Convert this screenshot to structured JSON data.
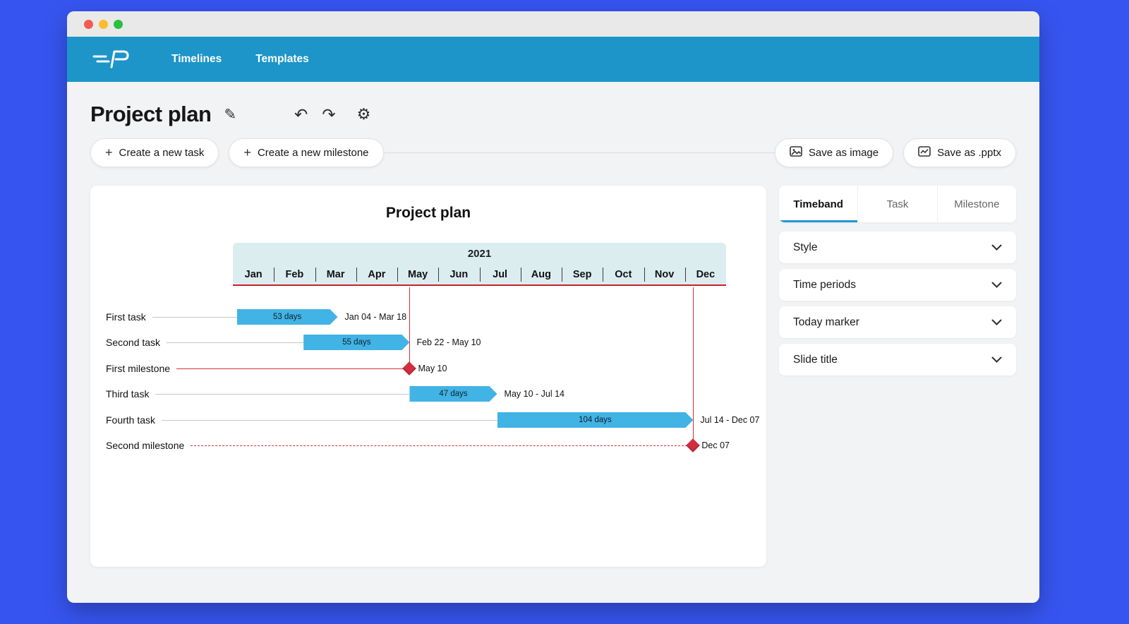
{
  "nav": {
    "items": [
      "Timelines",
      "Templates"
    ]
  },
  "icons": {
    "edit": "✎",
    "undo": "↶",
    "redo": "↷",
    "settings": "⚙",
    "plus": "+"
  },
  "page": {
    "title": "Project plan",
    "toolbar": {
      "create_task": "Create a new task",
      "create_milestone": "Create a new milestone",
      "save_image": "Save as image",
      "save_pptx": "Save as .pptx"
    }
  },
  "panel": {
    "tabs": [
      {
        "label": "Timeband",
        "active": true
      },
      {
        "label": "Task",
        "active": false
      },
      {
        "label": "Milestone",
        "active": false
      }
    ],
    "sections": [
      {
        "label": "Style"
      },
      {
        "label": "Time periods"
      },
      {
        "label": "Today marker"
      },
      {
        "label": "Slide title"
      }
    ]
  },
  "chart_data": {
    "type": "gantt-timeline",
    "title": "Project plan",
    "year": "2021",
    "months": [
      "Jan",
      "Feb",
      "Mar",
      "Apr",
      "May",
      "Jun",
      "Jul",
      "Aug",
      "Sep",
      "Oct",
      "Nov",
      "Dec"
    ],
    "rows": [
      {
        "kind": "task",
        "label": "First task",
        "duration": "53 days",
        "dates": "Jan 04 - Mar 18",
        "start_m": 0.1,
        "end_m": 2.55
      },
      {
        "kind": "task",
        "label": "Second task",
        "duration": "55 days",
        "dates": "Feb 22 - May 10",
        "start_m": 1.72,
        "end_m": 4.3
      },
      {
        "kind": "milestone",
        "label": "First milestone",
        "dates": "May 10",
        "at_m": 4.3,
        "line": "solid"
      },
      {
        "kind": "task",
        "label": "Third task",
        "duration": "47 days",
        "dates": "May 10 - Jul 14",
        "start_m": 4.3,
        "end_m": 6.43
      },
      {
        "kind": "task",
        "label": "Fourth task",
        "duration": "104 days",
        "dates": "Jul 14 - Dec 07",
        "start_m": 6.43,
        "end_m": 11.2
      },
      {
        "kind": "milestone",
        "label": "Second milestone",
        "dates": "Dec 07",
        "at_m": 11.2,
        "line": "dashed"
      }
    ],
    "colors": {
      "task_bar": "#41b3e4",
      "milestone": "#d12e3f",
      "timeband_bg": "#dcedf0",
      "timeband_underline": "#c9212e",
      "header_teal": "#1d95c9",
      "backdrop_blue": "#3655f0",
      "active_tab_underline": "#1f97d4"
    }
  }
}
